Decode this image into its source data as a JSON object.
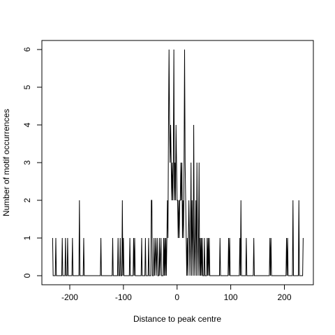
{
  "chart_data": {
    "type": "line",
    "xlabel": "Distance to peak centre",
    "ylabel": "Number of motif occurrences",
    "x": [
      -232,
      -231,
      -227,
      -226,
      -225,
      -215,
      -214,
      -213,
      -209,
      -208,
      -207,
      -205,
      -204,
      -203,
      -196,
      -195,
      -194,
      -183,
      -182,
      -181,
      -175,
      -174,
      -173,
      -143,
      -142,
      -141,
      -121,
      -120,
      -119,
      -111,
      -110,
      -109,
      -107,
      -106,
      -105,
      -103,
      -102,
      -101,
      -100,
      -99,
      -89,
      -88,
      -87,
      -82,
      -81,
      -80,
      -79,
      -78,
      -67,
      -66,
      -65,
      -60,
      -59,
      -58,
      -54,
      -53,
      -52,
      -49,
      -48,
      -47,
      -46,
      -44,
      -43,
      -42,
      -40,
      -39,
      -37,
      -36,
      -34,
      -33,
      -32,
      -30,
      -29,
      -26,
      -25,
      -24,
      -23,
      -22,
      -21,
      -20,
      -19,
      -18,
      -17,
      -16,
      -15,
      -14,
      -13,
      -12,
      -11,
      -10,
      -9,
      -8,
      -7,
      -6,
      -5,
      -4,
      -3,
      -2,
      -1,
      0,
      1,
      2,
      3,
      4,
      5,
      6,
      7,
      8,
      9,
      10,
      11,
      12,
      13,
      14,
      15,
      16,
      17,
      18,
      19,
      20,
      21,
      22,
      23,
      24,
      25,
      26,
      27,
      28,
      29,
      30,
      31,
      32,
      33,
      34,
      35,
      36,
      37,
      38,
      39,
      40,
      41,
      42,
      43,
      44,
      45,
      46,
      47,
      48,
      50,
      51,
      52,
      55,
      56,
      57,
      58,
      59,
      60,
      61,
      79,
      80,
      81,
      95,
      96,
      97,
      98,
      99,
      116,
      117,
      118,
      119,
      120,
      128,
      129,
      130,
      142,
      143,
      144,
      172,
      173,
      174,
      175,
      176,
      203,
      204,
      205,
      206,
      207,
      215,
      216,
      217,
      226,
      227,
      228,
      234,
      235
    ],
    "values": [
      1,
      0,
      0,
      1,
      0,
      0,
      1,
      0,
      0,
      1,
      0,
      0,
      1,
      0,
      0,
      1,
      0,
      0,
      2,
      0,
      0,
      1,
      0,
      0,
      1,
      0,
      0,
      1,
      0,
      0,
      1,
      0,
      0,
      1,
      0,
      0,
      2,
      0,
      1,
      0,
      0,
      1,
      0,
      0,
      1,
      0,
      1,
      0,
      0,
      1,
      0,
      0,
      1,
      0,
      0,
      1,
      0,
      0,
      2,
      2,
      0,
      0,
      1,
      0,
      1,
      0,
      1,
      0,
      0,
      1,
      0,
      1,
      0,
      0,
      1,
      0,
      1,
      0,
      1,
      0,
      1,
      2,
      1,
      4,
      6,
      4,
      3,
      4,
      3,
      2,
      3,
      2,
      3,
      6,
      2,
      3,
      2,
      4,
      3,
      2,
      2,
      1,
      2,
      1,
      2,
      2,
      3,
      2,
      3,
      1,
      2,
      1,
      3,
      6,
      3,
      2,
      1,
      0,
      1,
      0,
      1,
      2,
      1,
      0,
      1,
      3,
      0,
      2,
      1,
      0,
      4,
      1,
      0,
      1,
      2,
      0,
      3,
      1,
      0,
      1,
      3,
      0,
      1,
      0,
      1,
      0,
      1,
      0,
      0,
      1,
      0,
      0,
      1,
      0,
      1,
      0,
      1,
      0,
      0,
      1,
      0,
      0,
      1,
      0,
      1,
      0,
      0,
      1,
      0,
      2,
      0,
      0,
      1,
      0,
      0,
      1,
      0,
      0,
      1,
      0,
      1,
      0,
      0,
      1,
      0,
      1,
      0,
      0,
      2,
      0,
      0,
      2,
      0,
      0,
      1
    ],
    "color": "#000000",
    "xlim": [
      -252,
      254
    ],
    "ylim": [
      -0.24,
      6.24
    ],
    "xticks": [
      -200,
      -100,
      0,
      100,
      200
    ],
    "yticks": [
      0,
      1,
      2,
      3,
      4,
      5,
      6
    ]
  }
}
